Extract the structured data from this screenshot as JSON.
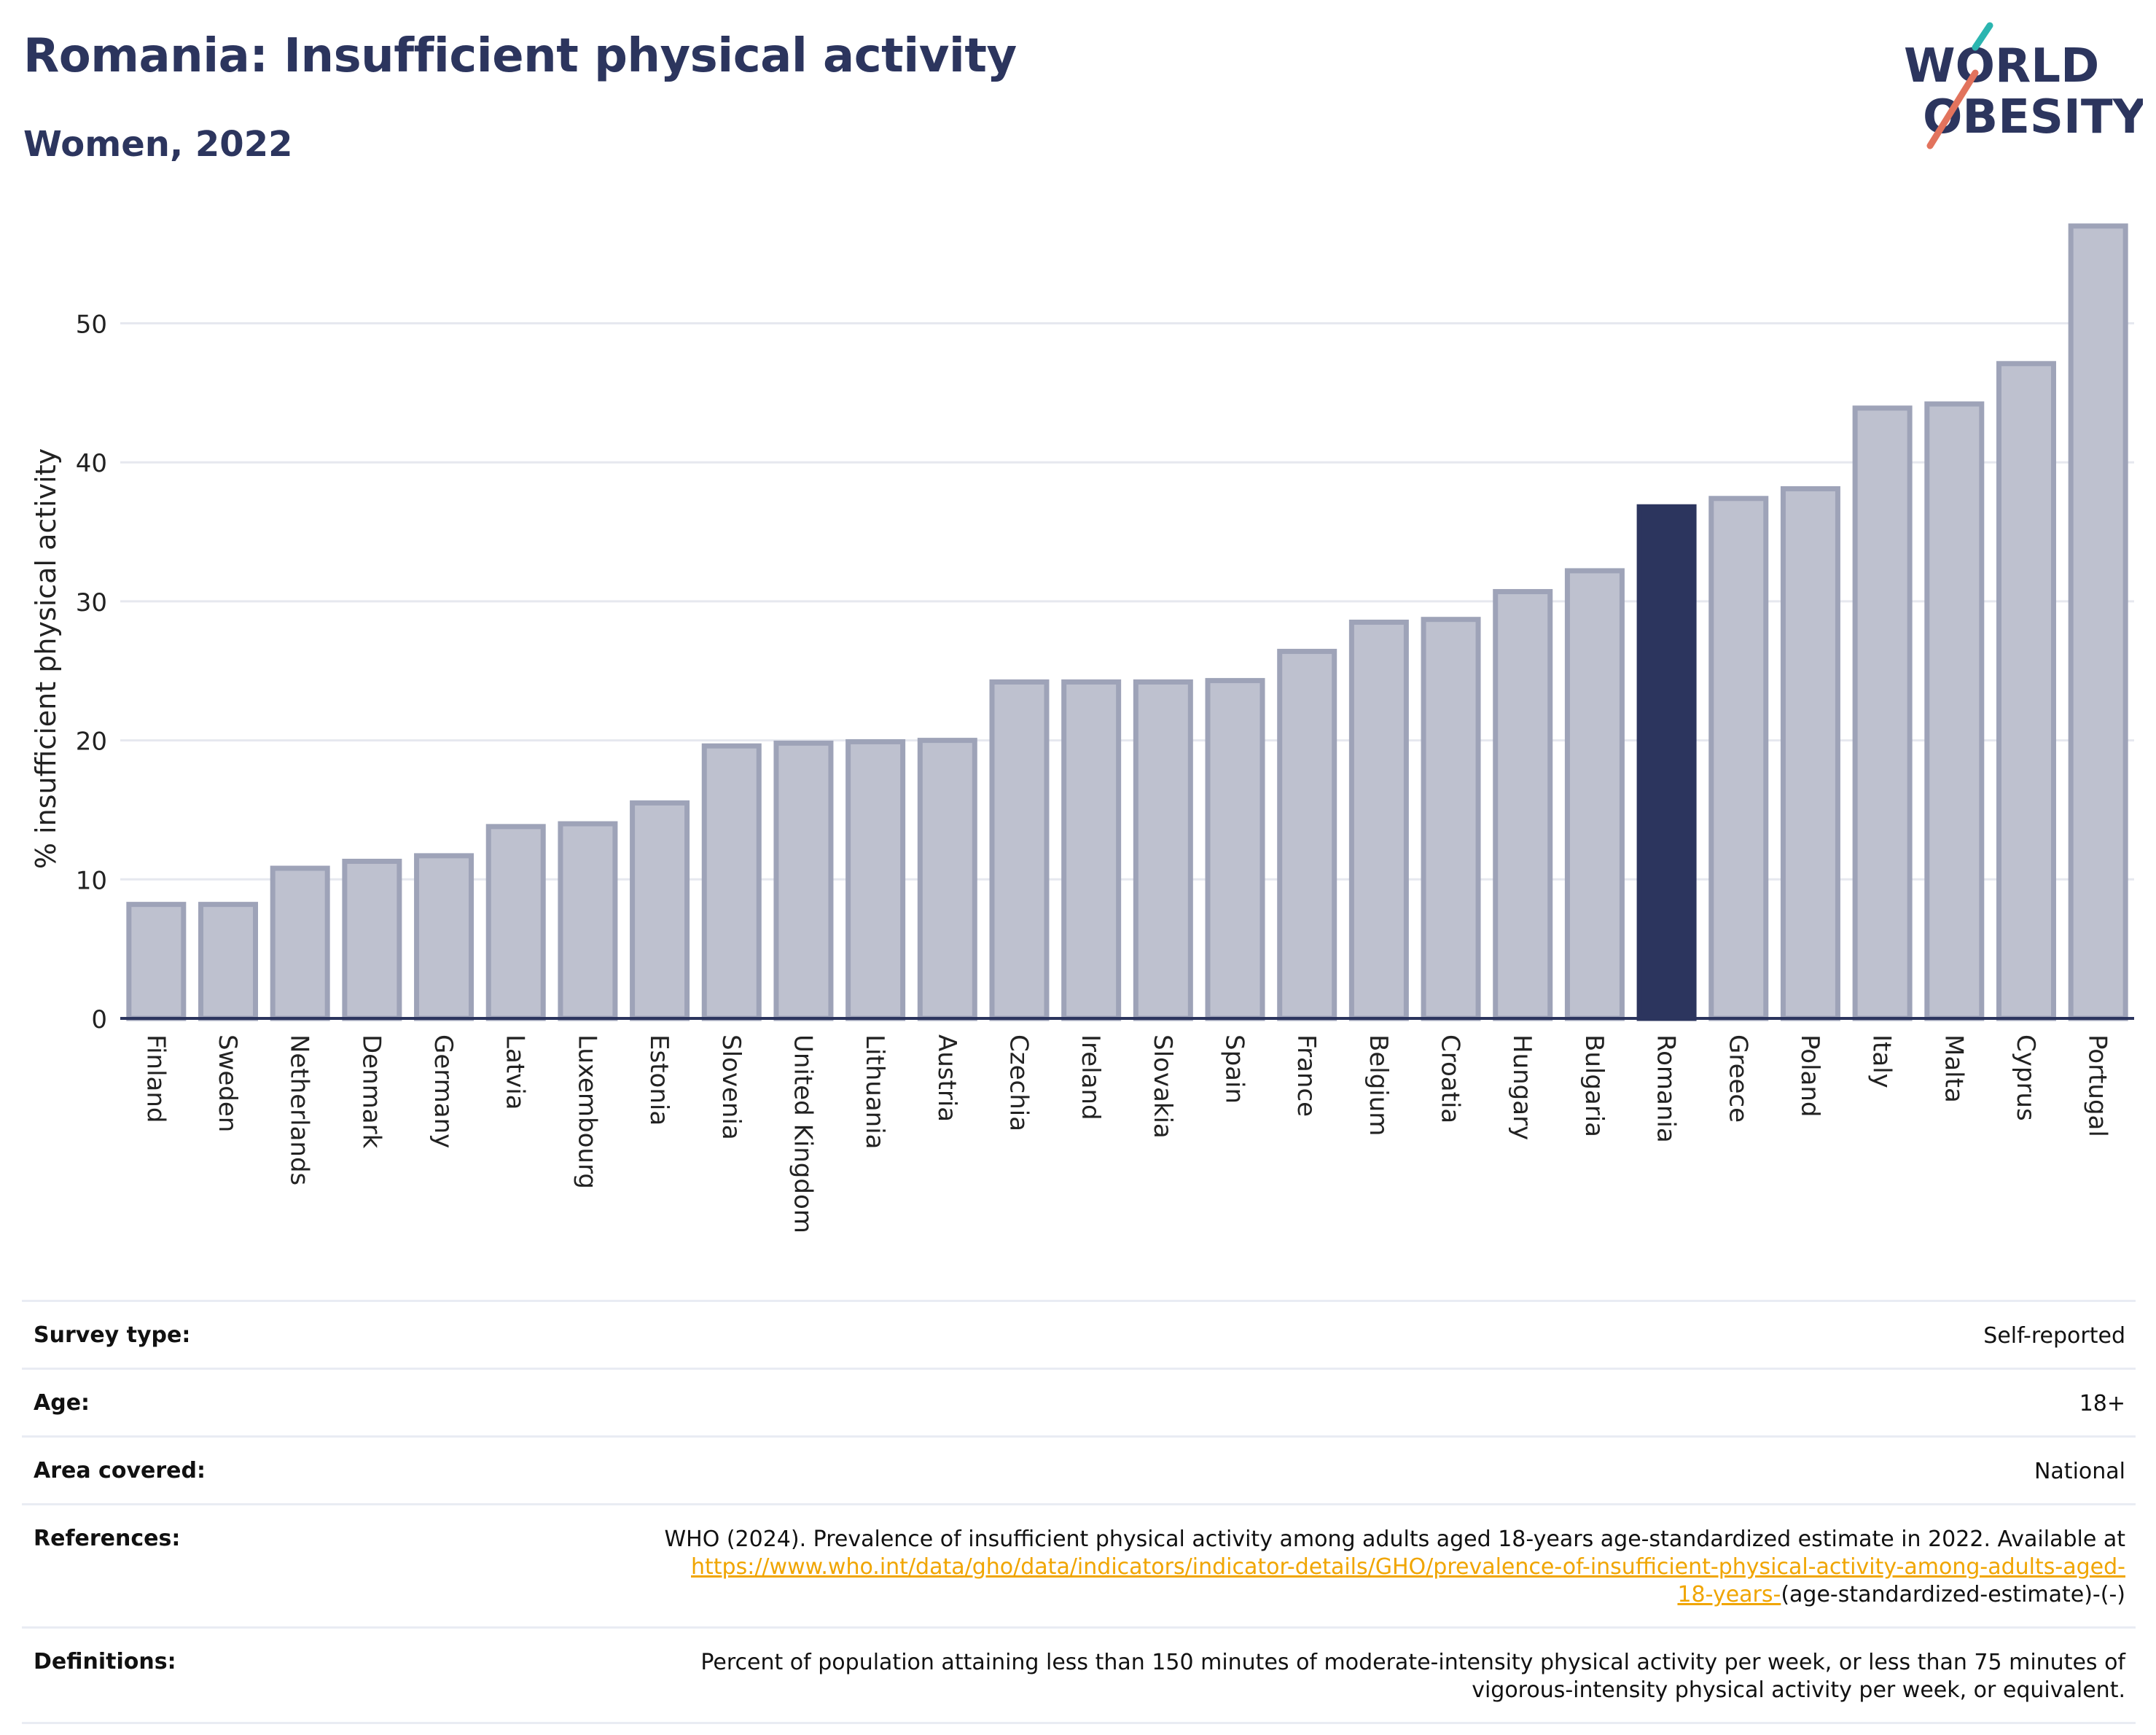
{
  "header": {
    "title": "Romania: Insufficient physical activity",
    "subtitle": "Women, 2022",
    "logo_line1": "WORLD",
    "logo_line2": "OBESITY"
  },
  "colors": {
    "title": "#2c355e",
    "bar_default": "#bec1cf",
    "bar_border": "#9ea3b8",
    "bar_highlight": "#2c355e",
    "logo_teal": "#2bb5b0",
    "logo_coral": "#e2735d"
  },
  "chart_data": {
    "type": "bar",
    "title": "Romania: Insufficient physical activity",
    "subtitle": "Women, 2022",
    "ylabel": "% insufficient physical activity",
    "xlabel": "",
    "ylim": [
      0,
      57
    ],
    "yticks": [
      0,
      10,
      20,
      30,
      40,
      50
    ],
    "grid": true,
    "highlight": "Romania",
    "categories": [
      "Finland",
      "Sweden",
      "Netherlands",
      "Denmark",
      "Germany",
      "Latvia",
      "Luxembourg",
      "Estonia",
      "Slovenia",
      "United Kingdom",
      "Lithuania",
      "Austria",
      "Czechia",
      "Ireland",
      "Slovakia",
      "Spain",
      "France",
      "Belgium",
      "Croatia",
      "Hungary",
      "Bulgaria",
      "Romania",
      "Greece",
      "Poland",
      "Italy",
      "Malta",
      "Cyprus",
      "Portugal"
    ],
    "values": [
      8.2,
      8.2,
      10.8,
      11.3,
      11.7,
      13.8,
      14.0,
      15.5,
      19.6,
      19.8,
      19.9,
      20.0,
      24.2,
      24.2,
      24.2,
      24.3,
      26.4,
      28.5,
      28.7,
      30.7,
      32.2,
      36.8,
      37.4,
      38.1,
      43.9,
      44.2,
      47.1,
      57.0
    ]
  },
  "info": {
    "survey_type_label": "Survey type:",
    "survey_type_value": "Self-reported",
    "age_label": "Age:",
    "age_value": "18+",
    "area_label": "Area covered:",
    "area_value": "National",
    "references_label": "References:",
    "references_text": "WHO (2024). Prevalence of insufficient physical activity among adults aged 18-years age-standardized estimate in 2022. Available at",
    "references_link_line1": "https://www.who.int/data/gho/data/indicators/indicator-details/GHO/prevalence-of-insufficient-physical-activity-among-adults-aged-",
    "references_link_line2": "18-years-",
    "references_tail": "(age-standardized-estimate)-(-)",
    "definitions_label": "Definitions:",
    "definitions_line1": "Percent of population attaining less than 150 minutes of moderate-intensity physical activity per week, or less than 75 minutes of",
    "definitions_line2": "vigorous-intensity physical activity per week, or equivalent."
  }
}
